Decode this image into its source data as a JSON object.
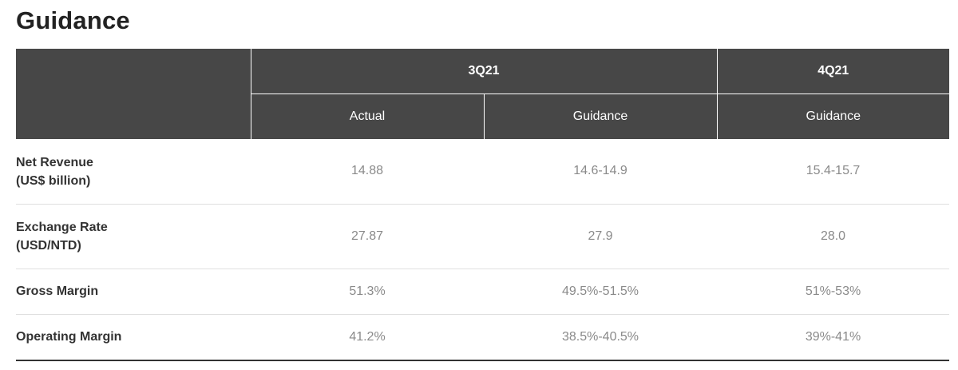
{
  "page": {
    "title": "Guidance"
  },
  "table": {
    "periods": [
      {
        "label": "3Q21"
      },
      {
        "label": "4Q21"
      }
    ],
    "subheaders": [
      "Actual",
      "Guidance",
      "Guidance"
    ],
    "rows": [
      {
        "label_line1": "Net Revenue",
        "label_line2": "(US$ billion)",
        "values": [
          "14.88",
          "14.6-14.9",
          "15.4-15.7"
        ]
      },
      {
        "label_line1": "Exchange Rate",
        "label_line2": "(USD/NTD)",
        "values": [
          "27.87",
          "27.9",
          "28.0"
        ]
      },
      {
        "label_line1": "Gross Margin",
        "label_line2": "",
        "values": [
          "51.3%",
          "49.5%-51.5%",
          "51%-53%"
        ]
      },
      {
        "label_line1": "Operating Margin",
        "label_line2": "",
        "values": [
          "41.2%",
          "38.5%-40.5%",
          "39%-41%"
        ]
      }
    ]
  }
}
